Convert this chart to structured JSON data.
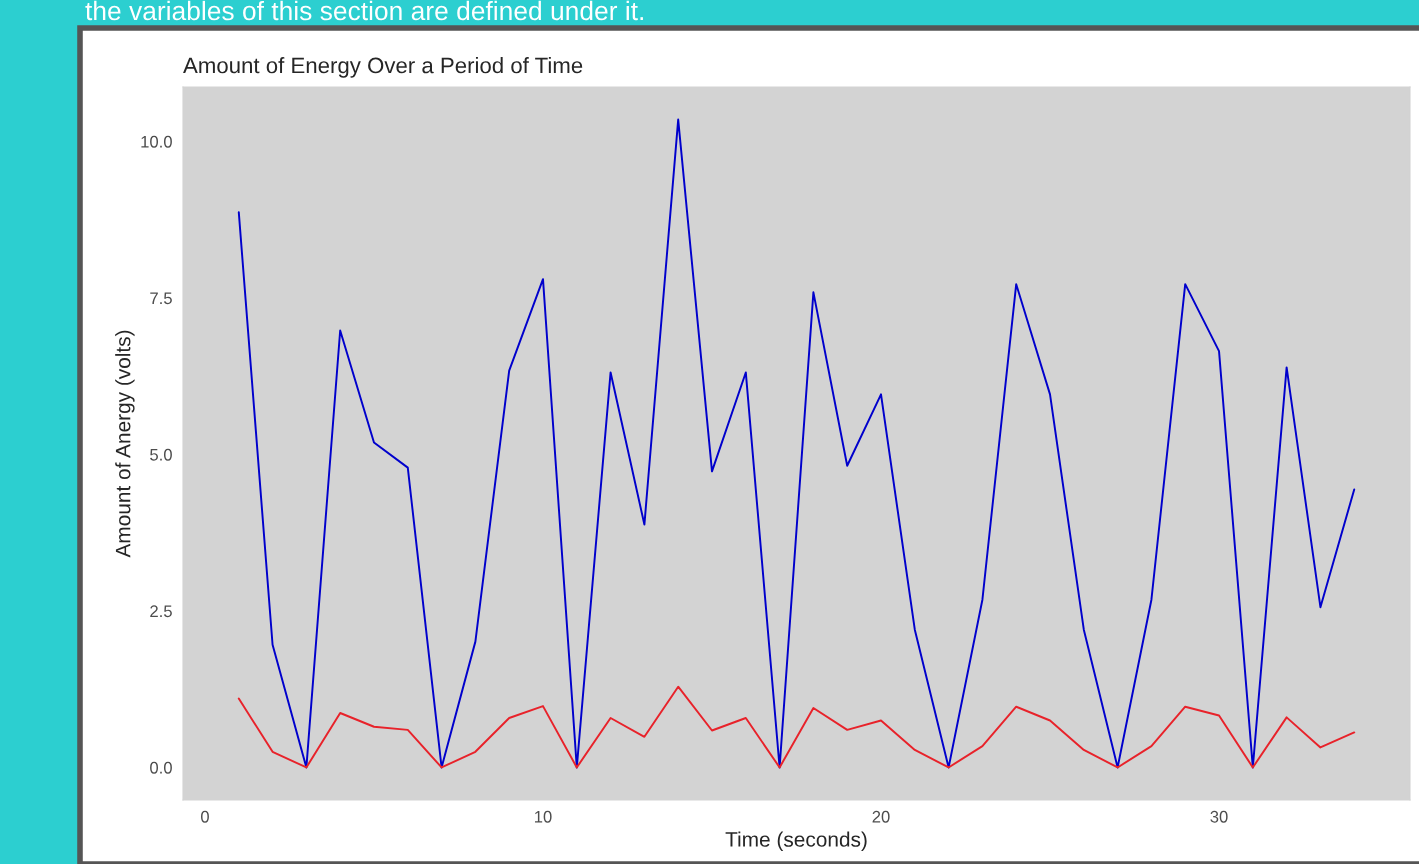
{
  "chart_data": {
    "type": "line",
    "title": "Amount of Energy Over a Period of Time",
    "xlabel": "Time (seconds)",
    "ylabel": "Amount of Anergy (volts)",
    "annotations": [
      "the variables of this section are defined under it."
    ],
    "x": [
      1,
      2,
      3,
      4,
      5,
      6,
      7,
      8,
      9,
      10,
      11,
      12,
      13,
      14,
      15,
      16,
      17,
      18,
      19,
      20,
      21,
      22,
      23,
      24,
      25,
      26,
      27,
      28,
      29,
      30,
      31,
      32,
      33,
      34
    ],
    "series": [
      {
        "color": "#0000cc",
        "values": [
          8.87,
          1.96,
          0,
          6.98,
          5.19,
          4.79,
          0,
          2.01,
          6.34,
          7.8,
          0,
          6.31,
          3.88,
          10.35,
          4.73,
          6.31,
          0,
          7.59,
          4.82,
          5.96,
          2.2,
          0,
          2.68,
          7.72,
          5.96,
          2.2,
          0,
          2.68,
          7.72,
          6.65,
          0,
          6.39,
          2.56,
          4.44
        ]
      },
      {
        "color": "#e8222a",
        "values": [
          1.1,
          0.25,
          0,
          0.87,
          0.65,
          0.6,
          0,
          0.25,
          0.79,
          0.98,
          0,
          0.79,
          0.49,
          1.29,
          0.59,
          0.79,
          0,
          0.95,
          0.6,
          0.75,
          0.28,
          0,
          0.34,
          0.97,
          0.75,
          0.28,
          0,
          0.34,
          0.97,
          0.83,
          0,
          0.8,
          0.32,
          0.56
        ]
      }
    ],
    "xlim": [
      -0.65,
      35.65
    ],
    "ylim": [
      -0.52,
      10.87
    ],
    "xticks": [
      0,
      10,
      20,
      30
    ],
    "yticks": [
      {
        "value": 0,
        "label": "0.0"
      },
      {
        "value": 2.5,
        "label": "2.5"
      },
      {
        "value": 5,
        "label": "5.0"
      },
      {
        "value": 7.5,
        "label": "7.5"
      },
      {
        "value": 10,
        "label": "10.0"
      }
    ],
    "grid": false
  }
}
